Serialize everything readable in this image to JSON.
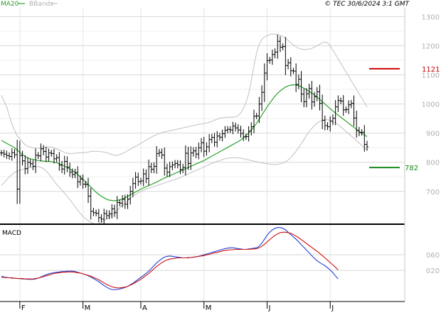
{
  "header": {
    "legend_ma": "MA20",
    "legend_bb": "BBands",
    "copyright": "© TEC 30/6/2024 3:1 GMT"
  },
  "colors": {
    "background": "#ffffff",
    "panel_bg": "#ffffff",
    "grid": "#d8d8d8",
    "axis_text": "#b0b0b0",
    "price_bars": "#000000",
    "ma20": "#2ca02c",
    "bbands": "#c0c0c0",
    "macd_line": "#1f3fd6",
    "signal_line": "#cc1111",
    "resistance": "#cc0000",
    "support": "#1a8a1a",
    "divider": "#000000"
  },
  "chart_data": [
    {
      "type": "ohlc",
      "panel": "price",
      "ylim": [
        590,
        1330
      ],
      "yticks": [
        700,
        800,
        900,
        1000,
        1100,
        1200,
        1300
      ],
      "ytick_labels": [
        "700",
        "800",
        "900",
        "1000",
        "1100",
        "1200",
        "1300"
      ],
      "month_labels": [
        {
          "label": "F",
          "bar": 7
        },
        {
          "label": "M",
          "bar": 31
        },
        {
          "label": "A",
          "bar": 53
        },
        {
          "label": "M",
          "bar": 77
        },
        {
          "label": "J",
          "bar": 101
        },
        {
          "label": "J",
          "bar": 125
        }
      ],
      "closes": [
        832,
        828,
        823,
        820,
        833,
        826,
        708,
        823,
        805,
        778,
        800,
        795,
        786,
        824,
        822,
        846,
        837,
        818,
        832,
        830,
        812,
        816,
        790,
        777,
        803,
        783,
        766,
        758,
        765,
        733,
        742,
        725,
        723,
        684,
        632,
        627,
        625,
        610,
        605,
        624,
        617,
        623,
        640,
        627,
        662,
        660,
        673,
        656,
        674,
        700,
        727,
        749,
        734,
        736,
        760,
        744,
        785,
        776,
        786,
        830,
        834,
        825,
        780,
        766,
        785,
        791,
        796,
        791,
        775,
        782,
        831,
        796,
        832,
        839,
        828,
        850,
        867,
        838,
        853,
        878,
        885,
        869,
        890,
        886,
        898,
        910,
        913,
        911,
        924,
        918,
        911,
        899,
        887,
        888,
        907,
        922,
        958,
        959,
        1000,
        1040,
        1106,
        1149,
        1151,
        1170,
        1178,
        1215,
        1195,
        1197,
        1132,
        1141,
        1114,
        1113,
        1067,
        1085,
        1034,
        1008,
        1035,
        1053,
        1007,
        1025,
        1042,
        1002,
        944,
        926,
        922,
        941,
        951,
        990,
        1012,
        1010,
        980,
        981,
        997,
        1002,
        952,
        909,
        902,
        903,
        861,
        853
      ],
      "ma20": [
        875,
        870,
        865,
        860,
        855,
        850,
        842,
        834,
        826,
        820,
        815,
        812,
        810,
        808,
        806,
        805,
        804,
        803,
        803,
        802,
        801,
        798,
        795,
        791,
        787,
        782,
        777,
        771,
        765,
        758,
        750,
        742,
        733,
        724,
        715,
        706,
        697,
        690,
        683,
        678,
        673,
        670,
        669,
        668,
        669,
        671,
        674,
        678,
        683,
        688,
        693,
        698,
        703,
        708,
        712,
        716,
        720,
        724,
        728,
        732,
        737,
        742,
        746,
        750,
        754,
        758,
        762,
        766,
        770,
        774,
        778,
        782,
        786,
        790,
        794,
        798,
        802,
        806,
        811,
        816,
        821,
        826,
        831,
        836,
        841,
        846,
        851,
        856,
        861,
        866,
        871,
        877,
        884,
        892,
        900,
        910,
        921,
        934,
        948,
        962,
        976,
        990,
        1003,
        1015,
        1027,
        1037,
        1045,
        1052,
        1058,
        1062,
        1065,
        1066,
        1065,
        1063,
        1059,
        1054,
        1049,
        1043,
        1037,
        1031,
        1024,
        1016,
        1008,
        1000,
        992,
        984,
        976,
        969,
        962,
        955,
        948,
        941,
        934,
        927,
        920,
        913,
        906,
        900,
        894,
        888
      ],
      "bb_upper": [
        1030,
        1010,
        990,
        960,
        930,
        910,
        890,
        880,
        870,
        860,
        855,
        852,
        850,
        849,
        848,
        849,
        850,
        852,
        853,
        852,
        850,
        846,
        842,
        838,
        834,
        831,
        830,
        830,
        831,
        832,
        833,
        833,
        834,
        835,
        837,
        838,
        838,
        837,
        836,
        835,
        833,
        830,
        826,
        824,
        824,
        826,
        830,
        835,
        840,
        845,
        850,
        855,
        860,
        865,
        870,
        876,
        881,
        886,
        891,
        895,
        899,
        902,
        904,
        906,
        908,
        910,
        912,
        914,
        916,
        918,
        920,
        922,
        924,
        926,
        928,
        930,
        931,
        933,
        935,
        937,
        940,
        944,
        948,
        951,
        953,
        954,
        955,
        955,
        955,
        956,
        960,
        970,
        985,
        1005,
        1035,
        1080,
        1130,
        1175,
        1205,
        1222,
        1230,
        1235,
        1238,
        1240,
        1240,
        1238,
        1236,
        1232,
        1226,
        1218,
        1210,
        1202,
        1196,
        1191,
        1188,
        1187,
        1187,
        1188,
        1191,
        1195,
        1200,
        1205,
        1210,
        1213,
        1210,
        1200,
        1185,
        1170,
        1155,
        1140,
        1125,
        1110,
        1095,
        1080,
        1065,
        1050,
        1035,
        1020,
        1005,
        990
      ],
      "bb_lower": [
        720,
        730,
        740,
        750,
        758,
        765,
        770,
        772,
        775,
        778,
        780,
        782,
        784,
        785,
        785,
        783,
        778,
        770,
        760,
        748,
        736,
        724,
        714,
        704,
        694,
        684,
        672,
        660,
        648,
        636,
        624,
        614,
        606,
        600,
        594,
        590,
        588,
        590,
        594,
        600,
        606,
        612,
        620,
        628,
        636,
        644,
        652,
        660,
        668,
        676,
        684,
        690,
        695,
        700,
        704,
        708,
        711,
        714,
        717,
        720,
        723,
        726,
        729,
        732,
        735,
        738,
        741,
        744,
        748,
        752,
        756,
        760,
        764,
        768,
        772,
        776,
        780,
        784,
        788,
        792,
        796,
        800,
        803,
        806,
        809,
        812,
        814,
        815,
        816,
        816,
        815,
        814,
        812,
        810,
        808,
        806,
        804,
        802,
        800,
        798,
        796,
        795,
        794,
        793,
        792,
        793,
        795,
        798,
        802,
        808,
        816,
        826,
        838,
        850,
        864,
        878,
        892,
        905,
        916,
        926,
        934,
        940,
        944,
        946,
        946,
        944,
        940,
        935,
        929,
        922,
        914,
        906,
        898,
        890,
        882,
        874,
        866,
        858,
        850,
        842
      ],
      "resistance": {
        "value": 1121,
        "label": "1121"
      },
      "support": {
        "value": 782,
        "label": "782"
      }
    },
    {
      "type": "line",
      "panel": "macd",
      "title": "MACD",
      "ylim": [
        -60,
        135
      ],
      "yticks": [
        20,
        60
      ],
      "ytick_labels": [
        "020",
        "060"
      ],
      "series": [
        {
          "name": "MACD",
          "role": "macd",
          "values": [
            5,
            3,
            2,
            1,
            1,
            0,
            -1,
            -1,
            -2,
            -2,
            -3,
            -3,
            -3,
            -2,
            0,
            3,
            6,
            9,
            11,
            13,
            14,
            15,
            16,
            17,
            17,
            18,
            18,
            18,
            17,
            15,
            13,
            11,
            9,
            6,
            3,
            -1,
            -5,
            -9,
            -14,
            -19,
            -23,
            -27,
            -29,
            -30,
            -29,
            -28,
            -26,
            -24,
            -21,
            -17,
            -13,
            -8,
            -3,
            2,
            7,
            12,
            18,
            25,
            32,
            39,
            45,
            50,
            54,
            56,
            57,
            56,
            55,
            54,
            53,
            52,
            52,
            52,
            53,
            54,
            55,
            56,
            58,
            60,
            62,
            64,
            66,
            68,
            70,
            72,
            74,
            76,
            77,
            78,
            78,
            77,
            76,
            75,
            74,
            74,
            75,
            76,
            77,
            78,
            82,
            90,
            100,
            110,
            118,
            124,
            128,
            130,
            130,
            128,
            124,
            118,
            112,
            106,
            100,
            93,
            86,
            79,
            72,
            65,
            58,
            51,
            45,
            40,
            36,
            32,
            27,
            21,
            14,
            6,
            -2
          ]
        },
        {
          "name": "Signal",
          "role": "signal",
          "values": [
            2,
            2,
            1,
            1,
            0,
            0,
            -1,
            -1,
            -1,
            -2,
            -2,
            -2,
            -2,
            -1,
            0,
            2,
            4,
            6,
            8,
            10,
            12,
            13,
            14,
            15,
            15,
            16,
            16,
            16,
            15,
            14,
            13,
            11,
            9,
            7,
            5,
            2,
            -1,
            -4,
            -8,
            -12,
            -16,
            -19,
            -22,
            -24,
            -25,
            -25,
            -24,
            -23,
            -21,
            -18,
            -15,
            -11,
            -7,
            -3,
            2,
            7,
            12,
            18,
            24,
            30,
            35,
            40,
            44,
            47,
            49,
            50,
            51,
            52,
            52,
            52,
            52,
            53,
            53,
            54,
            55,
            56,
            57,
            58,
            60,
            61,
            63,
            65,
            66,
            68,
            70,
            71,
            72,
            73,
            73,
            74,
            74,
            74,
            74,
            74,
            74,
            75,
            75,
            76,
            78,
            82,
            87,
            93,
            99,
            105,
            110,
            114,
            117,
            118,
            118,
            117,
            115,
            112,
            108,
            104,
            99,
            94,
            89,
            84,
            79,
            74,
            69,
            64,
            58,
            52,
            46,
            40,
            34,
            28,
            21
          ]
        }
      ]
    }
  ]
}
